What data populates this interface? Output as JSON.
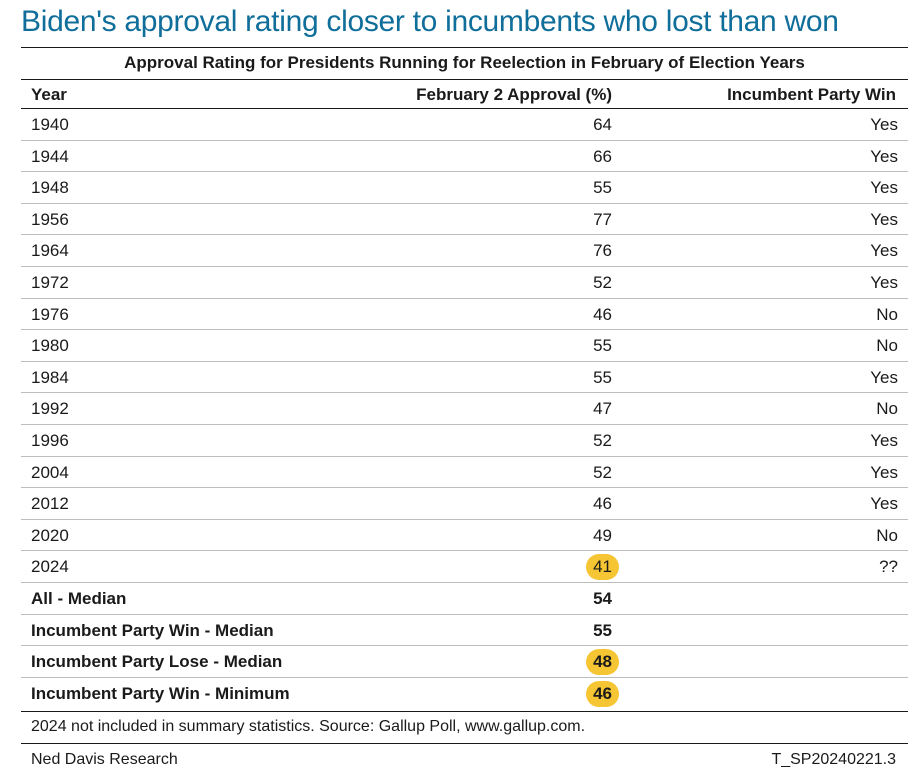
{
  "headline": "Biden's approval rating closer to incumbents who lost than won",
  "chart_data": {
    "type": "table",
    "title": "Approval Rating for Presidents Running for Reelection in February of Election Years",
    "columns": [
      "Year",
      "February 2 Approval (%)",
      "Incumbent Party Win"
    ],
    "rows": [
      {
        "year": "1940",
        "approval": "64",
        "win": "Yes"
      },
      {
        "year": "1944",
        "approval": "66",
        "win": "Yes"
      },
      {
        "year": "1948",
        "approval": "55",
        "win": "Yes"
      },
      {
        "year": "1956",
        "approval": "77",
        "win": "Yes"
      },
      {
        "year": "1964",
        "approval": "76",
        "win": "Yes"
      },
      {
        "year": "1972",
        "approval": "52",
        "win": "Yes"
      },
      {
        "year": "1976",
        "approval": "46",
        "win": "No"
      },
      {
        "year": "1980",
        "approval": "55",
        "win": "No"
      },
      {
        "year": "1984",
        "approval": "55",
        "win": "Yes"
      },
      {
        "year": "1992",
        "approval": "47",
        "win": "No"
      },
      {
        "year": "1996",
        "approval": "52",
        "win": "Yes"
      },
      {
        "year": "2004",
        "approval": "52",
        "win": "Yes"
      },
      {
        "year": "2012",
        "approval": "46",
        "win": "Yes"
      },
      {
        "year": "2020",
        "approval": "49",
        "win": "No"
      },
      {
        "year": "2024",
        "approval": "41",
        "win": "??",
        "highlight": true
      }
    ],
    "summary": [
      {
        "label": "All - Median",
        "value": "54"
      },
      {
        "label": "Incumbent Party Win - Median",
        "value": "55"
      },
      {
        "label": "Incumbent Party Lose - Median",
        "value": "48",
        "highlight": true
      },
      {
        "label": "Incumbent Party Win - Minimum",
        "value": "46",
        "highlight": true
      }
    ],
    "highlight_color": "#f5c533"
  },
  "note": "2024 not included in summary statistics. Source: Gallup Poll, www.gallup.com.",
  "footer": {
    "source": "Ned Davis Research",
    "code": "T_SP20240221.3"
  },
  "colors": {
    "headline": "#0f6e9a"
  }
}
